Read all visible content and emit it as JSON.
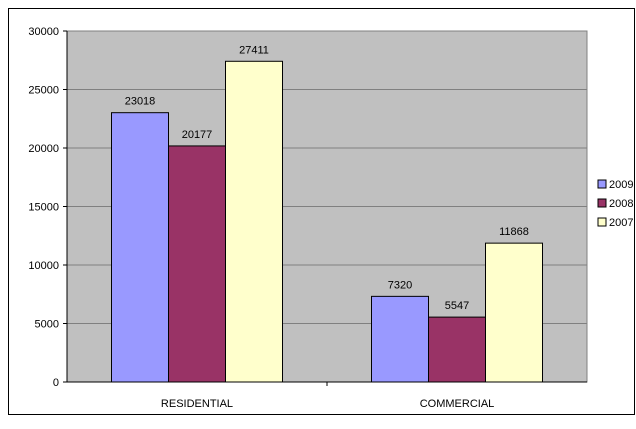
{
  "chart_data": {
    "type": "bar",
    "categories": [
      "RESIDENTIAL",
      "COMMERCIAL"
    ],
    "series": [
      {
        "name": "2009",
        "values": [
          23018,
          7320
        ],
        "color": "#9999ff"
      },
      {
        "name": "2008",
        "values": [
          20177,
          5547
        ],
        "color": "#993366"
      },
      {
        "name": "2007",
        "values": [
          27411,
          11868
        ],
        "color": "#ffffcc"
      }
    ],
    "yticks": [
      0,
      5000,
      10000,
      15000,
      20000,
      25000,
      30000
    ],
    "ylim": [
      0,
      30000
    ],
    "grid": true,
    "plot_background": "#c0c0c0",
    "legend": "right",
    "title": "",
    "xlabel": "",
    "ylabel": ""
  }
}
